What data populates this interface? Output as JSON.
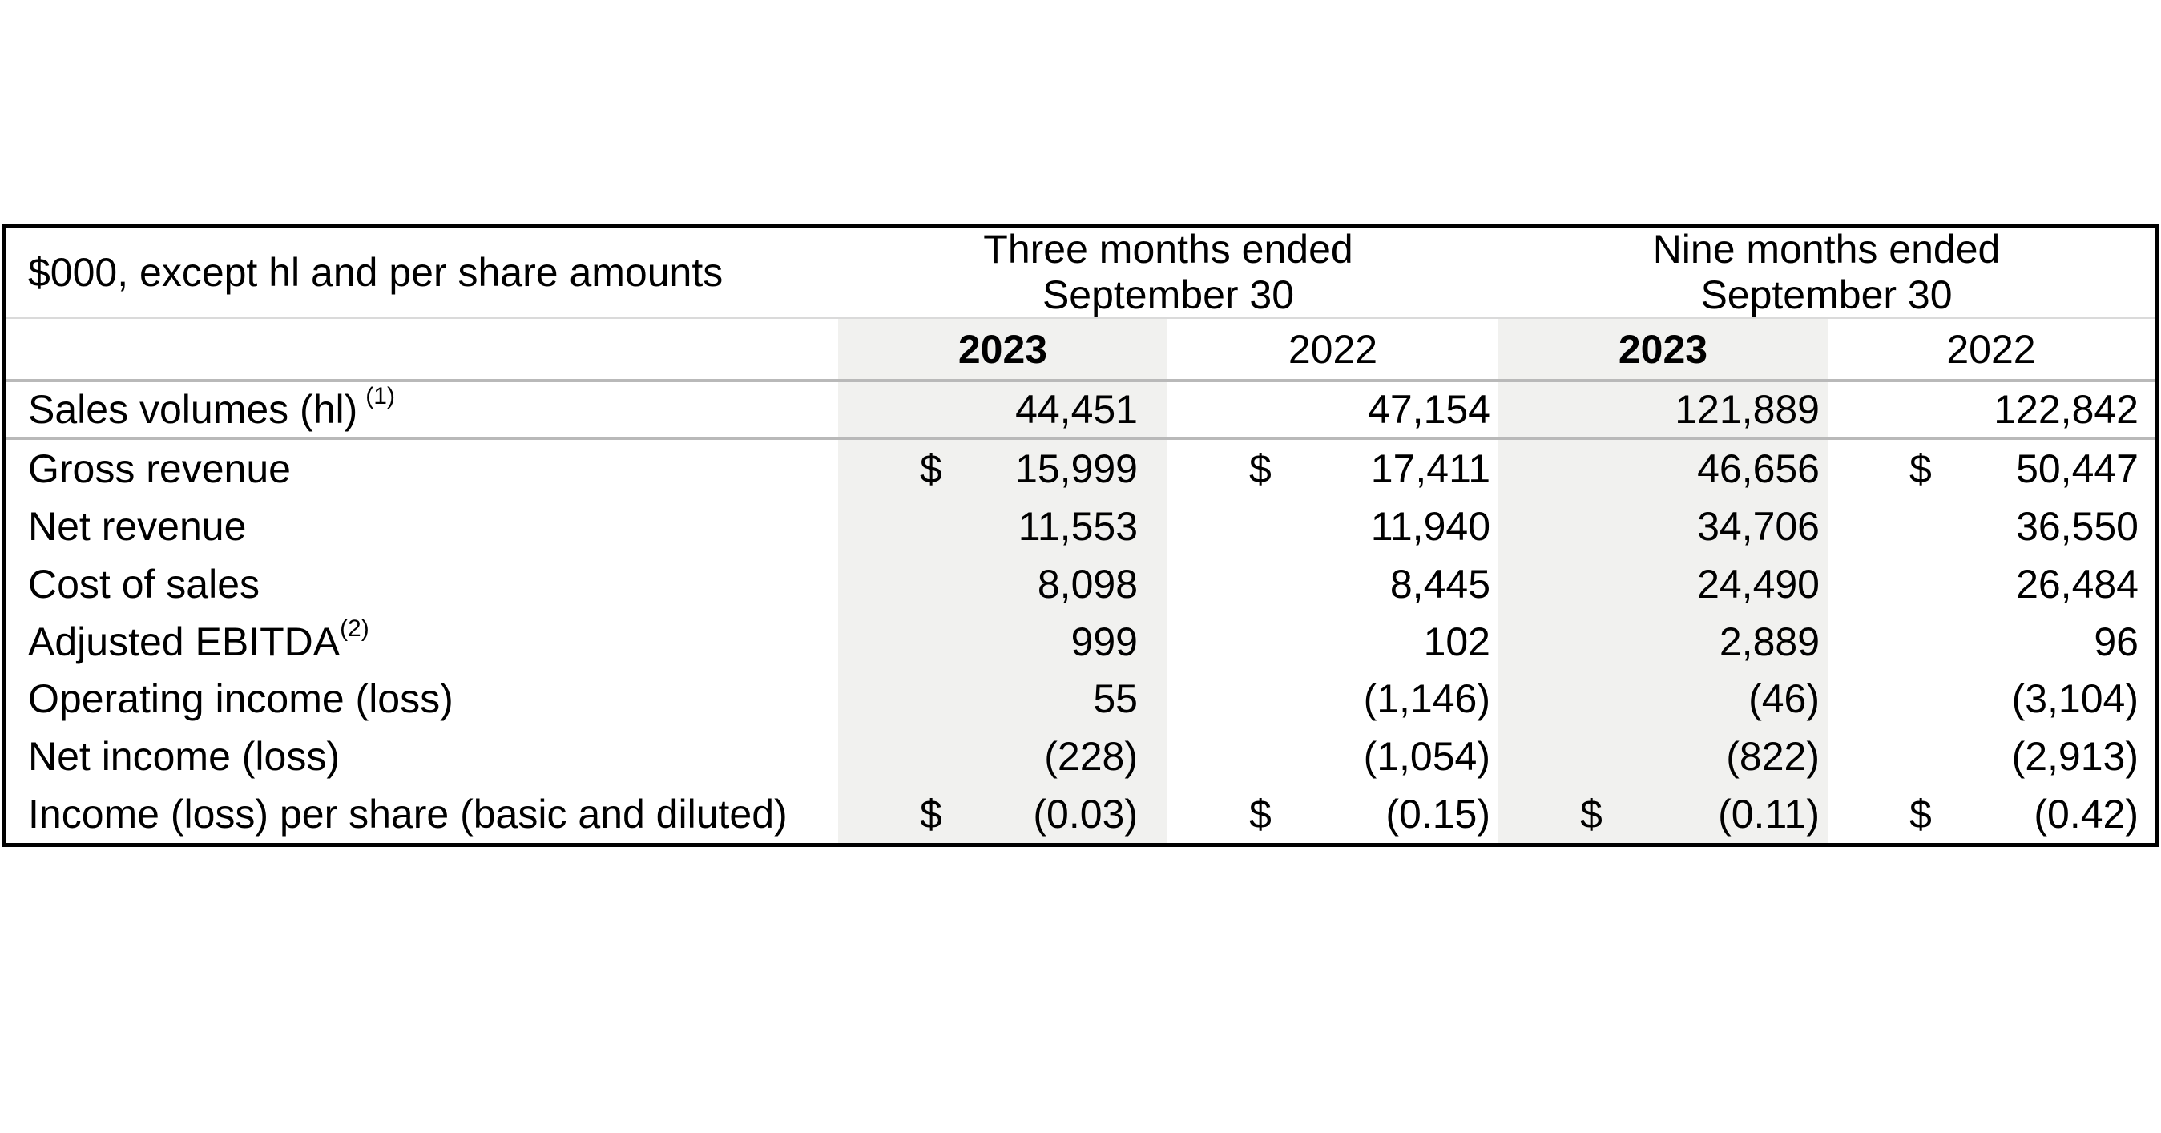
{
  "table": {
    "caption": "$000, except hl and per share amounts",
    "period_headers": [
      {
        "line1": "Three months ended",
        "line2": "September 30"
      },
      {
        "line1": "Nine months ended",
        "line2": "September 30"
      }
    ],
    "year_headers": [
      {
        "label": "2023"
      },
      {
        "label": "2022"
      },
      {
        "label": "2023"
      },
      {
        "label": "2022"
      }
    ],
    "rows": [
      {
        "label": "Sales volumes (hl)",
        "label_sup": "(1)",
        "sup_spaced": true,
        "divider_below": true,
        "values": [
          {
            "v": "44,451"
          },
          {
            "v": "47,154"
          },
          {
            "v": "121,889"
          },
          {
            "v": "122,842"
          }
        ]
      },
      {
        "label": "Gross revenue",
        "values": [
          {
            "d": "$",
            "v": "15,999"
          },
          {
            "d": "$",
            "v": "17,411"
          },
          {
            "v": "46,656"
          },
          {
            "d": "$",
            "v": "50,447"
          }
        ]
      },
      {
        "label": "Net revenue",
        "values": [
          {
            "v": "11,553"
          },
          {
            "v": "11,940"
          },
          {
            "v": "34,706"
          },
          {
            "v": "36,550"
          }
        ]
      },
      {
        "label": "Cost of sales",
        "values": [
          {
            "v": "8,098"
          },
          {
            "v": "8,445"
          },
          {
            "v": "24,490"
          },
          {
            "v": "26,484"
          }
        ]
      },
      {
        "label": "Adjusted EBITDA",
        "label_sup": "(2)",
        "sup_spaced": false,
        "values": [
          {
            "v": "999"
          },
          {
            "v": "102"
          },
          {
            "v": "2,889"
          },
          {
            "v": "96"
          }
        ]
      },
      {
        "label": "Operating income (loss)",
        "values": [
          {
            "v": "55"
          },
          {
            "v": "(1,146)"
          },
          {
            "v": "(46)"
          },
          {
            "v": "(3,104)"
          }
        ]
      },
      {
        "label": "Net income (loss)",
        "values": [
          {
            "v": "(228)"
          },
          {
            "v": "(1,054)"
          },
          {
            "v": "(822)"
          },
          {
            "v": "(2,913)"
          }
        ]
      },
      {
        "label": "Income (loss) per share (basic and diluted)",
        "values": [
          {
            "d": "$",
            "v": "(0.03)"
          },
          {
            "d": "$",
            "v": "(0.15)"
          },
          {
            "d": "$",
            "v": "(0.11)"
          },
          {
            "d": "$",
            "v": "(0.42)"
          }
        ]
      }
    ],
    "colors": {
      "border": "#000000",
      "column_shade": "#f1f1ef",
      "divider_light": "#dadada",
      "divider_mid": "#b9b9b9",
      "text": "#000000"
    }
  }
}
